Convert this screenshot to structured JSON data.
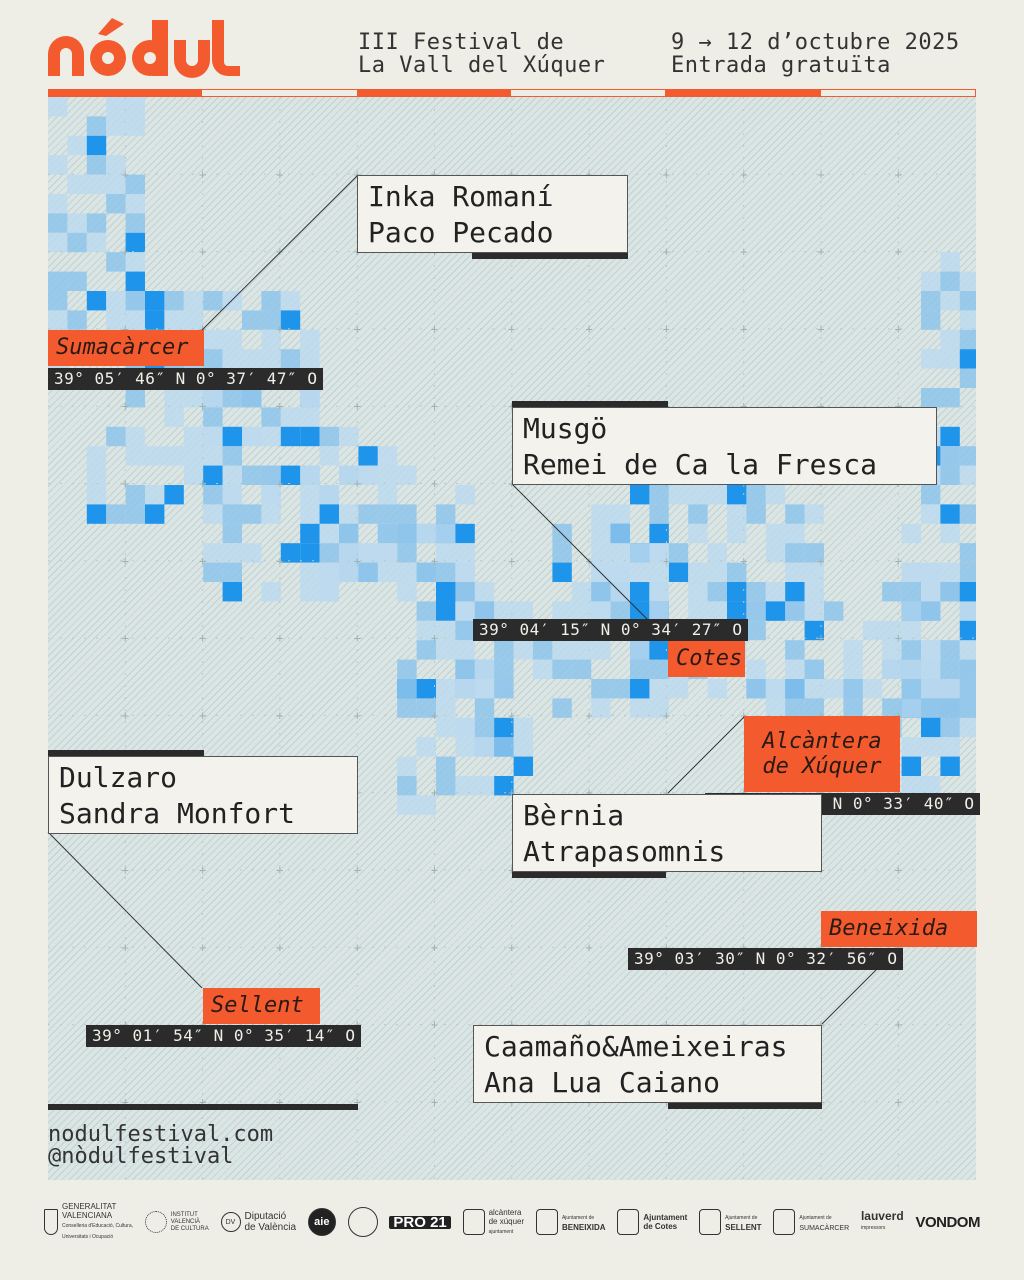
{
  "header": {
    "logo_alt": "nòdul",
    "festival_line1": "III Festival de",
    "festival_line2": "La Vall del Xúquer",
    "dates_line1": "9 → 12 d’octubre 2025",
    "dates_line2": "Entrada gratuïta"
  },
  "colors": {
    "accent": "#f35b2f",
    "tile_light": "#bcd9ee",
    "tile_mid": "#8ec4eb",
    "tile_dark": "#1e94ea",
    "dark": "#2b2b2b",
    "map_bg": "#dbe6e4"
  },
  "locations": [
    {
      "id": "sumacarcer",
      "place": "Sumacàrcer",
      "coords": "39° 05′ 46″ N 0° 37′ 47″ O",
      "artists": [
        "Inka Romaní",
        "Paco Pecado"
      ]
    },
    {
      "id": "cotes",
      "place": "Cotes",
      "coords": "39° 04′ 15″ N 0° 34′ 27″ O",
      "artists": [
        "Musgö",
        "Remei de Ca la Fresca"
      ]
    },
    {
      "id": "alcantera",
      "place_line1": "Alcàntera",
      "place_line2": "de Xúquer",
      "coords": "39° 04′ 04″ N 0° 33′ 40″ O",
      "artists": [
        "Bèrnia",
        "Atrapasomnis"
      ]
    },
    {
      "id": "sellent",
      "place": "Sellent",
      "coords": "39° 01′ 54″ N 0° 35′ 14″ O",
      "artists": [
        "Dulzaro",
        "Sandra Monfort"
      ]
    },
    {
      "id": "beneixida",
      "place": "Beneixida",
      "coords": "39° 03′ 30″ N 0° 32′ 56″ O",
      "artists": [
        "Caamaño&Ameixeiras",
        "Ana Lua Caiano"
      ]
    }
  ],
  "footer": {
    "website": "nodulfestival.com",
    "social": "@nòdulfestival"
  },
  "sponsors": [
    {
      "icon": "crest-icon",
      "lines": [
        "GENERALITAT",
        "VALENCIANA",
        "Conselleria d'Educació, Cultura,",
        "Universitats i Ocupació"
      ]
    },
    {
      "icon": "ivc-circle-icon",
      "lines": [
        "INSTITUT",
        "VALENCIÀ",
        "DE CULTURA"
      ]
    },
    {
      "icon": "dv-icon",
      "lines": [
        "Diputació",
        "de València"
      ]
    },
    {
      "icon": "aie-icon",
      "mark": "aie"
    },
    {
      "icon": "leaf-circle-icon",
      "mark": ""
    },
    {
      "icon": "pro21-icon",
      "box": "PRO 21"
    },
    {
      "icon": "alcantera-crest-icon",
      "lines": [
        "alcàntera",
        "de xúquer",
        "ajuntament"
      ]
    },
    {
      "icon": "beneixida-crest-icon",
      "lines": [
        "Ajuntament de",
        "BENEIXIDA"
      ]
    },
    {
      "icon": "cotes-crest-icon",
      "lines": [
        "Ajuntament",
        "de Cotes"
      ]
    },
    {
      "icon": "sellent-crest-icon",
      "lines": [
        "Ajuntament de",
        "SELLENT"
      ]
    },
    {
      "icon": "sumacarcer-crest-icon",
      "lines": [
        "Ajuntament de",
        "SUMACÀRCER"
      ]
    },
    {
      "icon": "lauverd-icon",
      "lines": [
        "lauverd",
        "impressors"
      ]
    },
    {
      "icon": "vondom-icon",
      "bold": "VONDOM"
    }
  ]
}
